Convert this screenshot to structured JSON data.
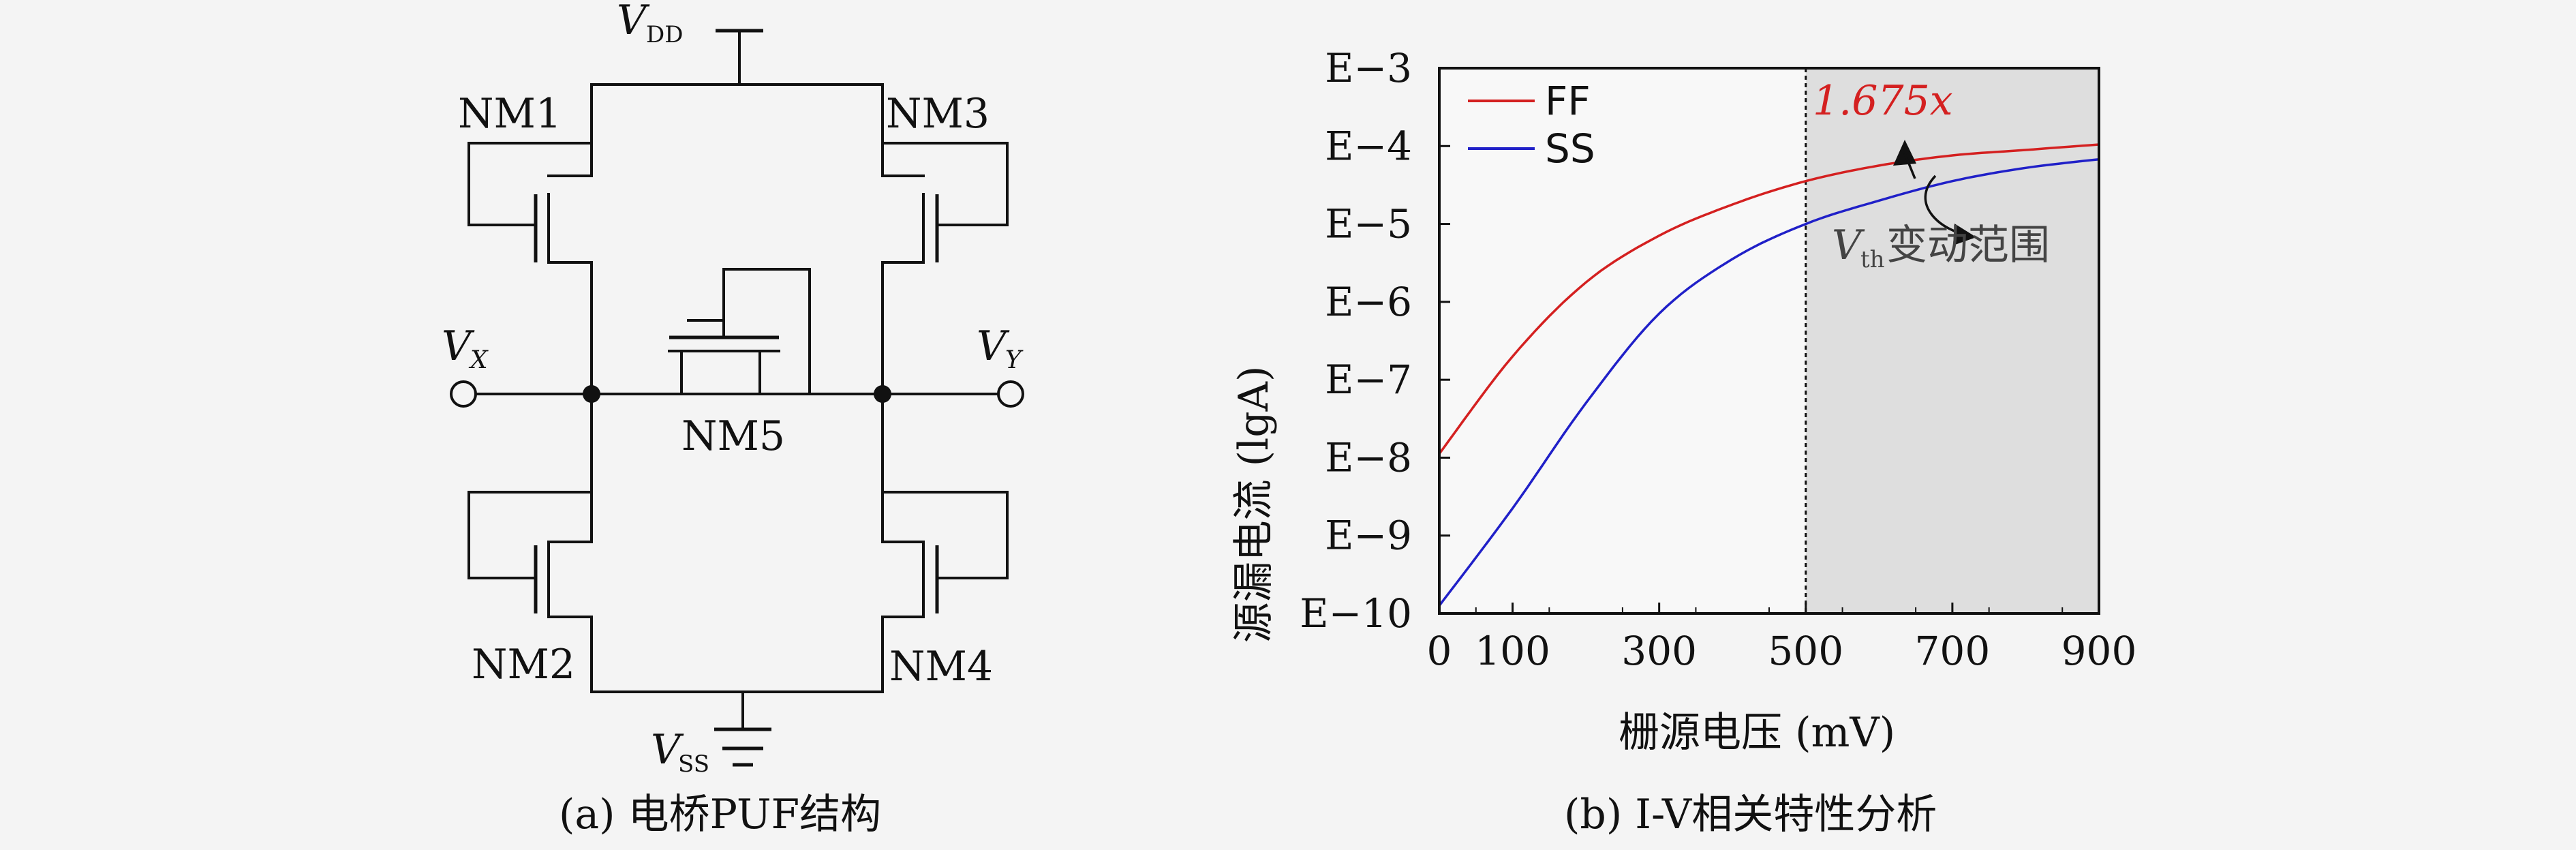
{
  "circuit": {
    "vdd_label": "V",
    "vdd_sub": "DD",
    "vss_label": "V",
    "vss_sub": "SS",
    "vx_label": "V",
    "vx_sub": "X",
    "vy_label": "V",
    "vy_sub": "Y",
    "transistors": [
      "NM1",
      "NM2",
      "NM3",
      "NM4",
      "NM5"
    ]
  },
  "caption_a": "(a) 电桥PUF结构",
  "caption_b": "(b) I-V相关特性分析",
  "chart_data": {
    "type": "line",
    "xlabel": "栅源电压 (mV)",
    "ylabel": "源漏电流 (lgA)",
    "xlim": [
      0,
      900
    ],
    "x_ticks": [
      0,
      100,
      300,
      500,
      700,
      900
    ],
    "ylim": [
      -10,
      -3
    ],
    "y_scale": "log",
    "y_tick_labels": [
      "E−3",
      "E−4",
      "E−5",
      "E−6",
      "E−7",
      "E−8",
      "E−9",
      "E−10"
    ],
    "y_tick_values": [
      -3,
      -4,
      -5,
      -6,
      -7,
      -8,
      -9,
      -10
    ],
    "legend": {
      "placement": "top-left"
    },
    "series": [
      {
        "name": "FF",
        "color": "#d42020",
        "x": [
          0,
          100,
          200,
          300,
          400,
          500,
          600,
          700,
          800,
          900
        ],
        "y": [
          -7.95,
          -6.7,
          -5.75,
          -5.15,
          -4.75,
          -4.45,
          -4.25,
          -4.12,
          -4.05,
          -3.98
        ]
      },
      {
        "name": "SS",
        "color": "#2020c8",
        "x": [
          0,
          100,
          200,
          300,
          400,
          500,
          600,
          700,
          800,
          900
        ],
        "y": [
          -9.9,
          -8.65,
          -7.3,
          -6.15,
          -5.45,
          -5.0,
          -4.7,
          -4.45,
          -4.28,
          -4.17
        ]
      }
    ],
    "vline_x": 500,
    "shaded_region": [
      500,
      900
    ],
    "annotation_ratio": "1.675x",
    "annotation_vth": "V",
    "annotation_vth_sub": "th",
    "annotation_vth_text": "变动范围"
  }
}
